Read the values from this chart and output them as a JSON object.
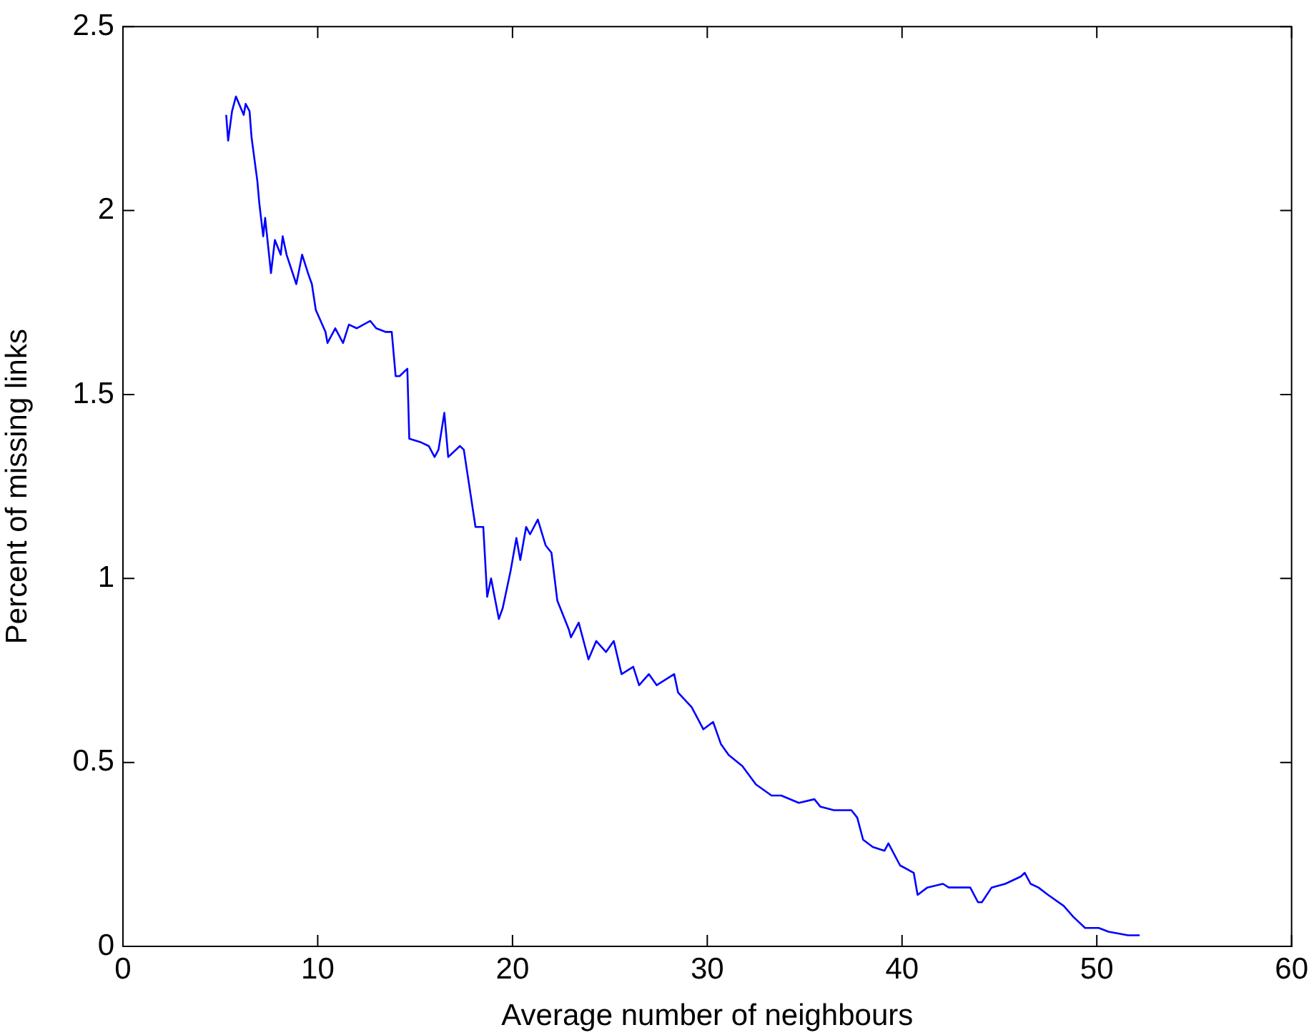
{
  "chart_data": {
    "type": "line",
    "xlabel": "Average number of neighbours",
    "ylabel": "Percent of missing links",
    "xlim": [
      0,
      60
    ],
    "xticks": [
      0,
      10,
      20,
      30,
      40,
      50,
      60
    ],
    "ylim": [
      0,
      2.5
    ],
    "yticks": [
      0,
      0.5,
      1,
      1.5,
      2,
      2.5
    ],
    "grid": false,
    "legend": false,
    "marker": "none",
    "line_style": "solid",
    "series": [
      {
        "color": "#0000ff",
        "x": [
          5.3,
          5.4,
          5.6,
          5.8,
          6.2,
          6.3,
          6.5,
          6.6,
          6.9,
          7.0,
          7.2,
          7.3,
          7.6,
          7.8,
          8.1,
          8.2,
          8.4,
          8.9,
          9.2,
          9.5,
          9.7,
          9.9,
          10.4,
          10.5,
          10.9,
          11.3,
          11.6,
          12.0,
          12.7,
          13.0,
          13.5,
          13.8,
          14.0,
          14.2,
          14.6,
          14.7,
          15.3,
          15.7,
          16.0,
          16.2,
          16.5,
          16.7,
          17.3,
          17.5,
          17.7,
          18.1,
          18.5,
          18.7,
          18.9,
          19.3,
          19.5,
          19.9,
          20.2,
          20.4,
          20.7,
          20.9,
          21.3,
          21.7,
          22.0,
          22.3,
          22.6,
          22.9,
          23.0,
          23.4,
          23.9,
          24.3,
          24.8,
          25.2,
          25.6,
          26.2,
          26.5,
          27.0,
          27.4,
          28.3,
          28.5,
          29.2,
          29.8,
          30.3,
          30.7,
          31.1,
          31.8,
          32.5,
          33.3,
          33.8,
          34.7,
          35.5,
          35.8,
          36.5,
          37.4,
          37.7,
          38.0,
          38.5,
          39.1,
          39.3,
          39.9,
          40.6,
          40.8,
          41.3,
          42.1,
          42.4,
          43.5,
          43.9,
          44.1,
          44.6,
          45.3,
          46.1,
          46.3,
          46.6,
          47.0,
          47.5,
          48.3,
          48.8,
          49.4,
          50.1,
          50.6,
          51.6,
          52.2
        ],
        "values": [
          2.26,
          2.19,
          2.27,
          2.31,
          2.26,
          2.29,
          2.27,
          2.2,
          2.08,
          2.02,
          1.93,
          1.98,
          1.83,
          1.92,
          1.88,
          1.93,
          1.88,
          1.8,
          1.88,
          1.83,
          1.8,
          1.73,
          1.67,
          1.64,
          1.68,
          1.64,
          1.69,
          1.68,
          1.7,
          1.68,
          1.67,
          1.67,
          1.55,
          1.55,
          1.57,
          1.38,
          1.37,
          1.36,
          1.33,
          1.35,
          1.45,
          1.33,
          1.36,
          1.35,
          1.28,
          1.14,
          1.14,
          0.95,
          1.0,
          0.89,
          0.92,
          1.02,
          1.11,
          1.05,
          1.14,
          1.12,
          1.16,
          1.09,
          1.07,
          0.94,
          0.9,
          0.86,
          0.84,
          0.88,
          0.78,
          0.83,
          0.8,
          0.83,
          0.74,
          0.76,
          0.71,
          0.74,
          0.71,
          0.74,
          0.69,
          0.65,
          0.59,
          0.61,
          0.55,
          0.52,
          0.49,
          0.44,
          0.41,
          0.41,
          0.39,
          0.4,
          0.38,
          0.37,
          0.37,
          0.35,
          0.29,
          0.27,
          0.26,
          0.28,
          0.22,
          0.2,
          0.14,
          0.16,
          0.17,
          0.16,
          0.16,
          0.12,
          0.12,
          0.16,
          0.17,
          0.19,
          0.2,
          0.17,
          0.16,
          0.14,
          0.11,
          0.08,
          0.05,
          0.05,
          0.04,
          0.03,
          0.03
        ]
      }
    ]
  }
}
